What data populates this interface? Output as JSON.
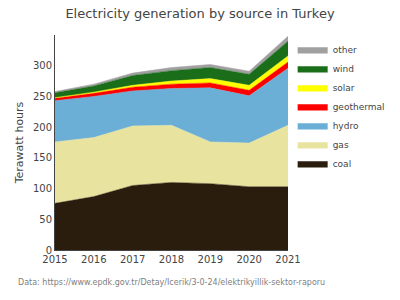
{
  "chart_data": {
    "type": "area",
    "stacked": true,
    "title": "Electricity generation by source in Turkey",
    "ylabel": "Terawatt hours",
    "x": [
      2015,
      2016,
      2017,
      2018,
      2019,
      2020,
      2021
    ],
    "xlim": [
      2015,
      2021
    ],
    "xticks": [
      2015,
      2016,
      2017,
      2018,
      2019,
      2020,
      2021
    ],
    "ylim": [
      0,
      350
    ],
    "yticks": [
      0,
      50,
      100,
      150,
      200,
      250,
      300
    ],
    "grid": false,
    "legend": "right",
    "series": [
      {
        "name": "coal",
        "color": "#2b1d0e",
        "values": [
          76,
          87,
          105,
          110,
          108,
          103,
          103
        ]
      },
      {
        "name": "gas",
        "color": "#e8e4a0",
        "values": [
          100,
          96,
          97,
          93,
          68,
          71,
          100
        ]
      },
      {
        "name": "hydro",
        "color": "#6baed6",
        "values": [
          67,
          67,
          57,
          60,
          88,
          77,
          93
        ]
      },
      {
        "name": "geothermal",
        "color": "#ff0000",
        "values": [
          4,
          5,
          6,
          7,
          8,
          9,
          10
        ]
      },
      {
        "name": "solar",
        "color": "#ffff00",
        "values": [
          1,
          2,
          3,
          5,
          7,
          8,
          10
        ]
      },
      {
        "name": "wind",
        "color": "#1a6e1a",
        "values": [
          8,
          10,
          16,
          17,
          18,
          18,
          24
        ]
      },
      {
        "name": "other",
        "color": "#a0a0a0",
        "values": [
          2,
          3,
          4,
          5,
          5,
          5,
          8
        ]
      }
    ],
    "annotations": [
      "Data: https://www.epdk.gov.tr/Detay/Icerik/3-0-24/elektrikyillik-sektor-raporu"
    ]
  }
}
